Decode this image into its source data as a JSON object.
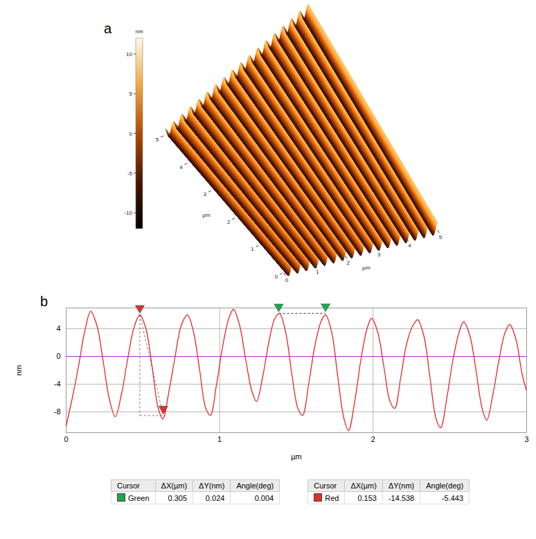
{
  "chart_data": [
    {
      "panel": "a",
      "type": "surface",
      "axis_label": "µm",
      "xticks": [
        0,
        1,
        2,
        3,
        4,
        5
      ],
      "yticks": [
        0,
        1,
        2,
        3,
        4,
        5
      ],
      "ridges": 17,
      "colorbar": {
        "label": "nm",
        "range": [
          -12,
          12
        ],
        "ticks": [
          10,
          5,
          0,
          -5,
          -10
        ]
      }
    },
    {
      "panel": "b",
      "type": "line",
      "xlabel": "µm",
      "ylabel": "nm",
      "xlim": [
        0,
        3
      ],
      "ylim": [
        -11,
        7
      ],
      "xticks": [
        0,
        1,
        2,
        3
      ],
      "yticks": [
        -8,
        -4,
        0,
        4
      ],
      "grid": true,
      "color": "#e8262a",
      "reference_lines": [
        {
          "y": 0,
          "color": "#9933cc"
        }
      ],
      "x": [
        0,
        0.04,
        0.08,
        0.12,
        0.16,
        0.2,
        0.24,
        0.28,
        0.32,
        0.36,
        0.4,
        0.44,
        0.48,
        0.52,
        0.56,
        0.6,
        0.63,
        0.67,
        0.71,
        0.75,
        0.79,
        0.83,
        0.87,
        0.91,
        0.94,
        0.98,
        1.02,
        1.06,
        1.09,
        1.13,
        1.17,
        1.21,
        1.24,
        1.28,
        1.32,
        1.36,
        1.39,
        1.43,
        1.47,
        1.51,
        1.54,
        1.58,
        1.62,
        1.66,
        1.69,
        1.73,
        1.77,
        1.81,
        1.84,
        1.88,
        1.92,
        1.96,
        1.99,
        2.03,
        2.07,
        2.11,
        2.14,
        2.18,
        2.22,
        2.26,
        2.29,
        2.33,
        2.37,
        2.41,
        2.44,
        2.48,
        2.52,
        2.56,
        2.59,
        2.63,
        2.67,
        2.71,
        2.74,
        2.78,
        2.82,
        2.86,
        2.89,
        2.93,
        2.97,
        3.0
      ],
      "values": [
        -10,
        -6,
        -1.5,
        3.5,
        6.5,
        4.5,
        -0.5,
        -6,
        -8.7,
        -5.5,
        -0.5,
        4,
        6,
        4,
        -1.5,
        -7.5,
        -9,
        -5,
        0,
        4.5,
        6,
        3.5,
        -2,
        -7.5,
        -8.5,
        -4,
        1.5,
        5.5,
        6.8,
        4.5,
        -0.5,
        -5,
        -6.5,
        -3,
        2,
        5.5,
        6.2,
        3.5,
        -2.5,
        -7.5,
        -8.5,
        -4,
        1.5,
        5,
        6,
        3.5,
        -3,
        -9,
        -10.7,
        -6.5,
        -0.5,
        4,
        5.5,
        3.5,
        -1.5,
        -6.5,
        -7.5,
        -3,
        2,
        4.5,
        5.3,
        3,
        -3,
        -9,
        -10.3,
        -6,
        -0.5,
        3.5,
        5,
        3,
        -2,
        -7.5,
        -9.2,
        -5.5,
        -0.5,
        3.5,
        4.6,
        2.5,
        -2.5,
        -5
      ],
      "cursors": [
        {
          "name": "Green",
          "color": "#1fa64a",
          "x": [
            1.385,
            1.69
          ],
          "y": [
            6.2,
            6.224
          ]
        },
        {
          "name": "Red",
          "color": "#e0302a",
          "x": [
            0.48,
            0.633
          ],
          "y": [
            6.0,
            -8.538
          ]
        }
      ]
    }
  ],
  "cursor_table": {
    "columns": [
      "Cursor",
      "ΔX(µm)",
      "ΔY(nm)",
      "Angle(deg)"
    ],
    "rows": [
      [
        "Green",
        0.305,
        0.024,
        0.004
      ],
      [
        "Red",
        0.153,
        -14.538,
        -5.443
      ]
    ]
  }
}
